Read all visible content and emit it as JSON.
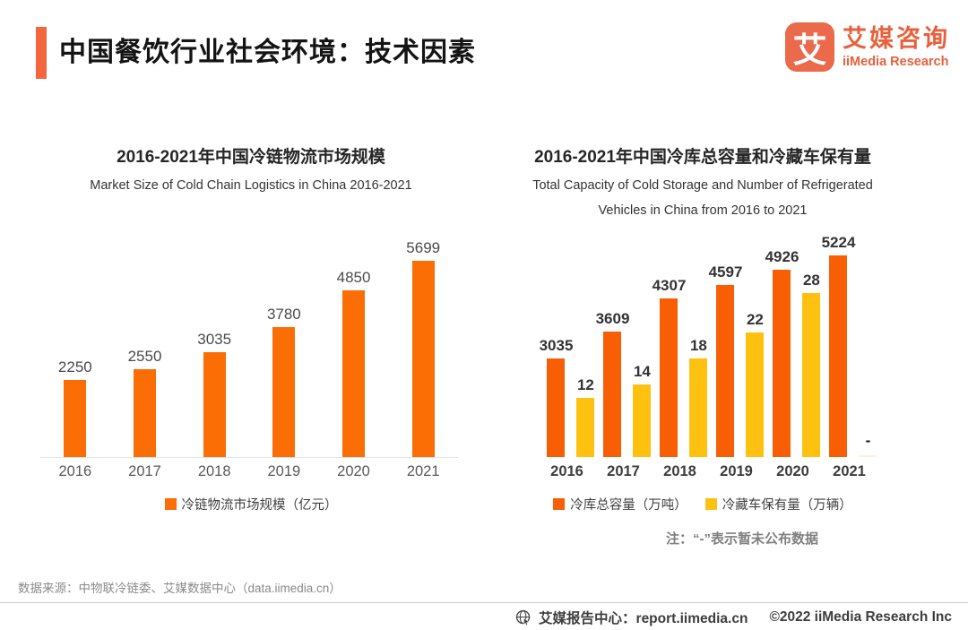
{
  "palette": {
    "accent": "#f4663d",
    "brand_orange": "#e8603c",
    "logo_tile": "#ea6a4b",
    "bar_orange_left": "#fb6d05",
    "bar_orange_right": "#f85e04",
    "bar_yellow": "#ffc110",
    "missing_bar": "#fdf0d8"
  },
  "header": {
    "title": "中国餐饮行业社会环境：技术因素",
    "logo": {
      "tile_glyph": "艾",
      "brand_cn": "艾媒咨询",
      "brand_en": "iiMedia Research"
    }
  },
  "chart_data": [
    {
      "type": "bar",
      "title": "2016-2021年中国冷链物流市场规模",
      "subtitle": "Market Size of Cold Chain Logistics in China 2016-2021",
      "categories": [
        "2016",
        "2017",
        "2018",
        "2019",
        "2020",
        "2021"
      ],
      "series": [
        {
          "name": "冷链物流市场规模（亿元）",
          "color": "#fb6d05",
          "values": [
            2250,
            2550,
            3035,
            3780,
            4850,
            5699
          ],
          "labels": [
            "2250",
            "2550",
            "3035",
            "3780",
            "4850",
            "5699"
          ],
          "axis_range": [
            0,
            6300
          ]
        }
      ],
      "grid": false,
      "legend_position": "bottom"
    },
    {
      "type": "bar",
      "title": "2016-2021年中国冷库总容量和冷藏车保有量",
      "subtitle": "Total Capacity of Cold Storage and Number of Refrigerated Vehicles in China from 2016 to 2021",
      "categories": [
        "2016",
        "2017",
        "2018",
        "2019",
        "2020",
        "2021"
      ],
      "series": [
        {
          "name": "冷库总容量（万吨）",
          "color": "#f85e04",
          "values": [
            3035,
            3609,
            4307,
            4597,
            4926,
            5224
          ],
          "labels": [
            "3035",
            "3609",
            "4307",
            "4597",
            "4926",
            "5224"
          ],
          "axis_range": [
            940,
            5548
          ]
        },
        {
          "name": "冷藏车保有量（万辆）",
          "color": "#ffc110",
          "values": [
            12,
            14,
            18,
            22,
            28,
            null
          ],
          "labels": [
            "12",
            "14",
            "18",
            "22",
            "28",
            "-"
          ],
          "axis_range": [
            3,
            36
          ]
        }
      ],
      "grid": false,
      "legend_position": "bottom",
      "note": "注：“-”表示暂未公布数据"
    }
  ],
  "source": "数据来源：中物联冷链委、艾媒数据中心（data.iimedia.cn）",
  "footer": {
    "report_center": "艾媒报告中心：report.iimedia.cn",
    "copyright": "©2022  iiMedia Research  Inc"
  }
}
